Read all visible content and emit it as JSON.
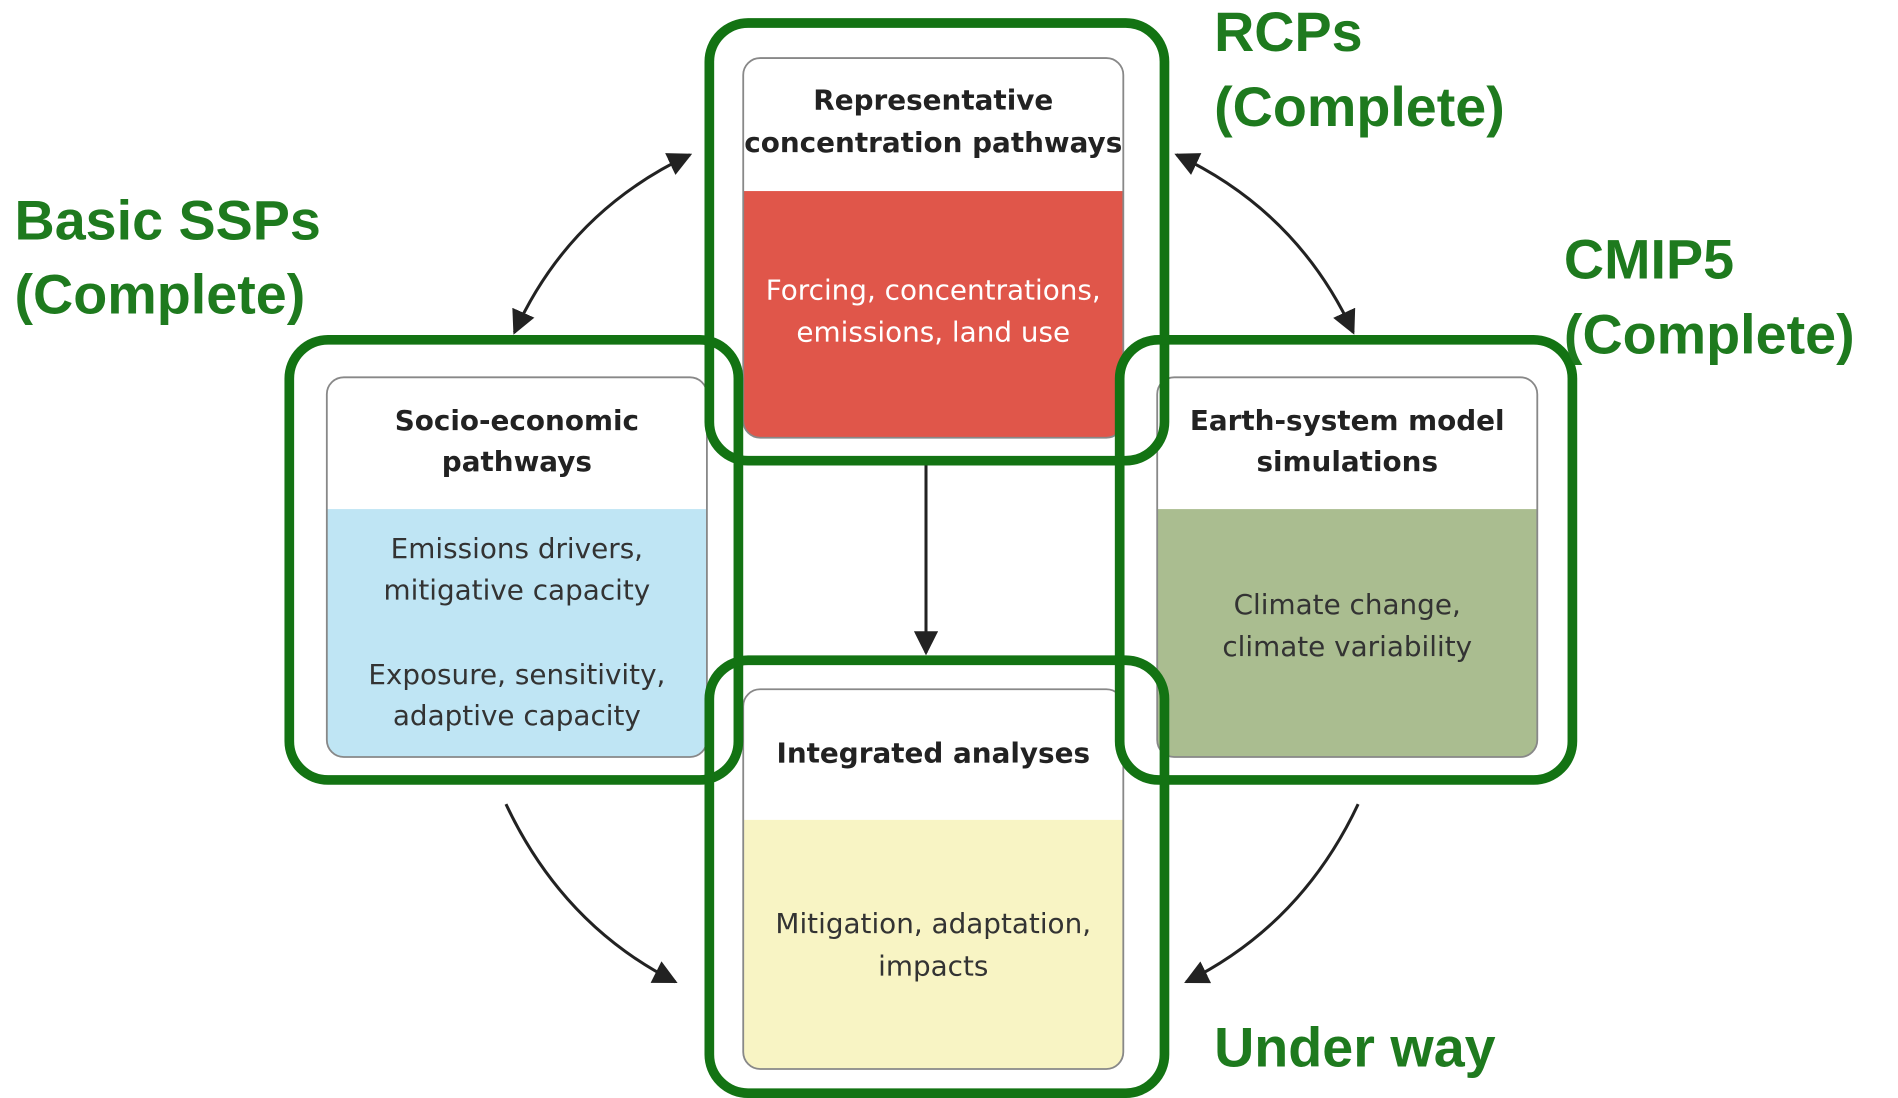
{
  "nodes": [
    {
      "title": [
        "Representative",
        "concentration pathways"
      ],
      "body": [
        "Forcing, concentrations,",
        "emissions, land use"
      ]
    },
    {
      "title": [
        "Socio-economic",
        "pathways"
      ],
      "body": [
        "Emissions drivers,",
        "mitigative capacity",
        "Exposure, sensitivity,",
        "adaptive capacity"
      ]
    },
    {
      "title": [
        "Earth-system model",
        "simulations"
      ],
      "body": [
        "Climate change,",
        "climate variability"
      ]
    },
    {
      "title": [
        "Integrated analyses"
      ],
      "body": [
        "Mitigation, adaptation,",
        "impacts"
      ]
    }
  ],
  "status_labels": [
    {
      "lines": [
        "RCPs",
        "(Complete)"
      ]
    },
    {
      "lines": [
        "Basic SSPs",
        "(Complete)"
      ]
    },
    {
      "lines": [
        "CMIP5",
        "(Complete)"
      ]
    },
    {
      "lines": [
        "Under way"
      ]
    }
  ]
}
